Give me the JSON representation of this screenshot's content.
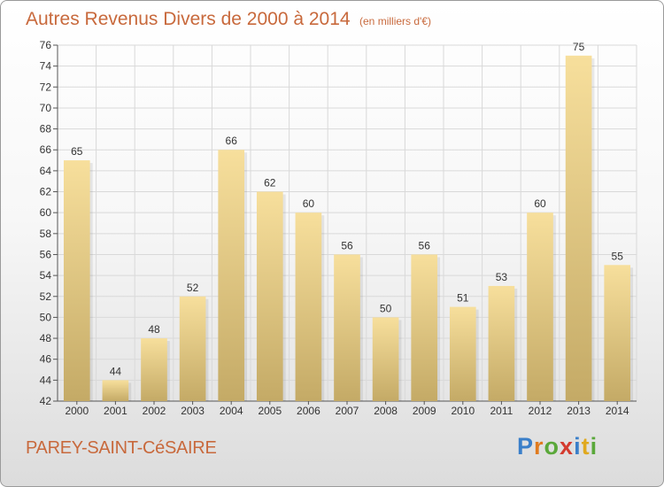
{
  "header": {
    "title": "Autres Revenus Divers de 2000 à 2014",
    "subtitle": "(en milliers d'€)"
  },
  "footer": {
    "commune": "PAREY-SAINT-CéSAIRE",
    "logo_text": "Proxiti"
  },
  "colors": {
    "title": "#c8693c",
    "bar_light": "#f7df9c",
    "bar_dark": "#c4aa66",
    "grid": "#d9d9d9",
    "axis": "#555555"
  },
  "chart_data": {
    "type": "bar",
    "title": "Autres Revenus Divers de 2000 à 2014",
    "subtitle": "(en milliers d'€)",
    "xlabel": "",
    "ylabel": "",
    "categories": [
      "2000",
      "2001",
      "2002",
      "2003",
      "2004",
      "2005",
      "2006",
      "2007",
      "2008",
      "2009",
      "2010",
      "2011",
      "2012",
      "2013",
      "2014"
    ],
    "values": [
      65,
      44,
      48,
      52,
      66,
      62,
      60,
      56,
      50,
      56,
      51,
      53,
      60,
      75,
      55
    ],
    "ylim": [
      42,
      76
    ],
    "yticks": [
      42,
      44,
      46,
      48,
      50,
      52,
      54,
      56,
      58,
      60,
      62,
      64,
      66,
      68,
      70,
      72,
      74,
      76
    ],
    "grid": true,
    "legend": "none"
  }
}
